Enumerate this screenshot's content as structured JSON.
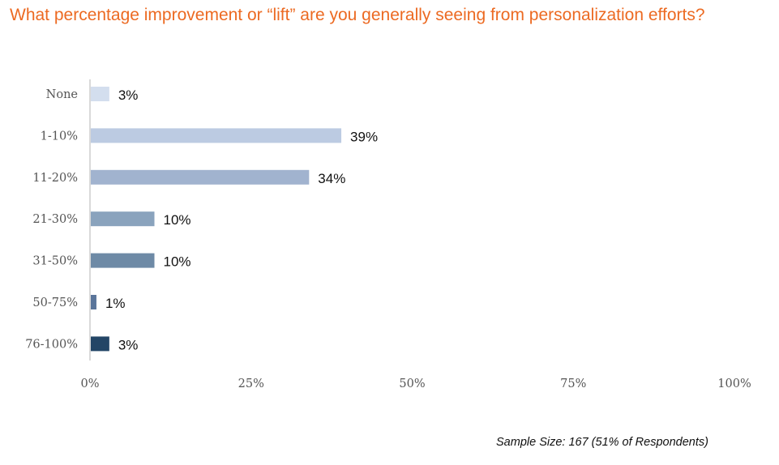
{
  "question": "What percentage improvement or “lift” are you generally seeing from personalization efforts?",
  "sample_size": "Sample Size: 167 (51% of Respondents)",
  "colors": {
    "title": "#ec6a22",
    "axis_line": "#b3b3b3",
    "bars": [
      "#d3deee",
      "#bccbe2",
      "#a1b3cf",
      "#8aa3bd",
      "#6e8aa6",
      "#5a759a",
      "#234566"
    ]
  },
  "chart_data": {
    "type": "bar",
    "orientation": "horizontal",
    "title": "What percentage improvement or “lift” are you generally seeing from personalization efforts?",
    "categories": [
      "None",
      "1-10%",
      "11-20%",
      "21-30%",
      "31-50%",
      "50-75%",
      "76-100%"
    ],
    "values": [
      3,
      39,
      34,
      10,
      10,
      1,
      3
    ],
    "value_labels": [
      "3%",
      "39%",
      "34%",
      "10%",
      "10%",
      "1%",
      "3%"
    ],
    "xlim": [
      0,
      100
    ],
    "xticks": [
      0,
      25,
      50,
      75,
      100
    ],
    "xtick_labels": [
      "0%",
      "25%",
      "50%",
      "75%",
      "100%"
    ],
    "grid": false,
    "legend": "none"
  }
}
